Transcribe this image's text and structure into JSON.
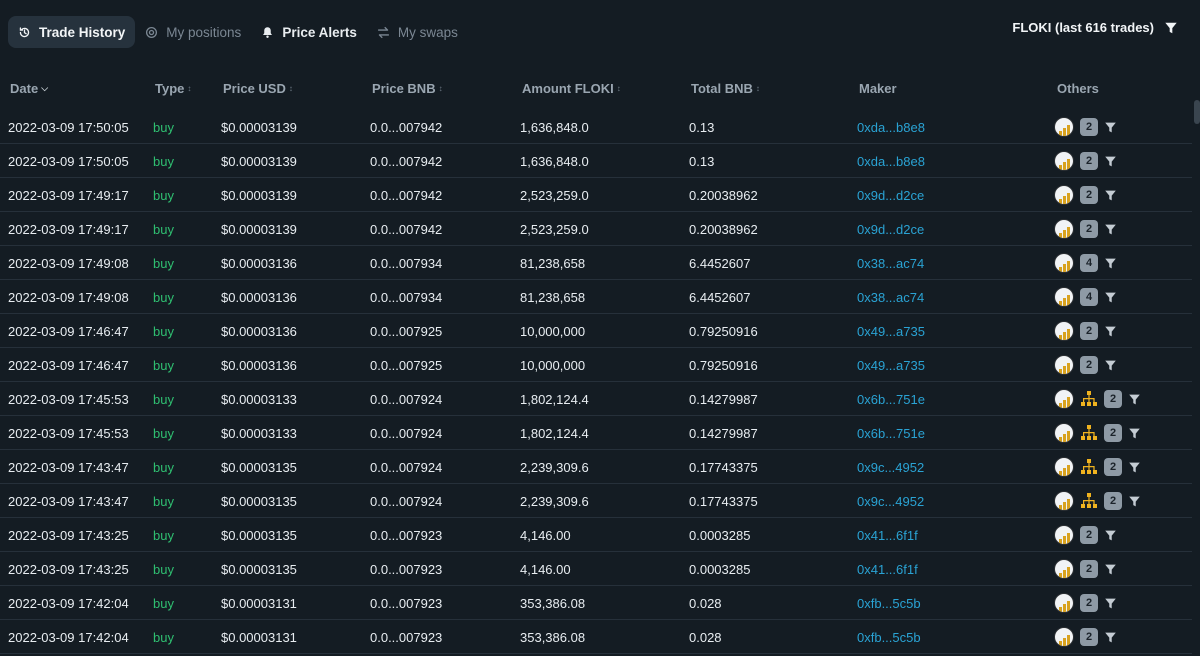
{
  "tabs": [
    {
      "label": "Trade History",
      "icon": "history-icon",
      "active": true
    },
    {
      "label": "My positions",
      "icon": "target-icon",
      "active": false
    },
    {
      "label": "Price Alerts",
      "icon": "bell-icon",
      "active": false
    },
    {
      "label": "My swaps",
      "icon": "swap-icon",
      "active": false
    }
  ],
  "filter_summary": "FLOKI (last 616 trades)",
  "columns": {
    "date": "Date",
    "type": "Type",
    "price_usd": "Price USD",
    "price_bnb": "Price BNB",
    "amount": "Amount FLOKI",
    "total": "Total BNB",
    "maker": "Maker",
    "others": "Others"
  },
  "colors": {
    "buy": "#2fbf71",
    "maker_link": "#2aa3d4",
    "background": "#141c23"
  },
  "trades": [
    {
      "date": "2022-03-09 17:50:05",
      "type": "buy",
      "price_usd": "$0.00003139",
      "price_bnb": "0.0...007942",
      "amount": "1,636,848.0",
      "total": "0.13",
      "maker": "0xda...b8e8",
      "count": "2",
      "org": false
    },
    {
      "date": "2022-03-09 17:50:05",
      "type": "buy",
      "price_usd": "$0.00003139",
      "price_bnb": "0.0...007942",
      "amount": "1,636,848.0",
      "total": "0.13",
      "maker": "0xda...b8e8",
      "count": "2",
      "org": false
    },
    {
      "date": "2022-03-09 17:49:17",
      "type": "buy",
      "price_usd": "$0.00003139",
      "price_bnb": "0.0...007942",
      "amount": "2,523,259.0",
      "total": "0.20038962",
      "maker": "0x9d...d2ce",
      "count": "2",
      "org": false
    },
    {
      "date": "2022-03-09 17:49:17",
      "type": "buy",
      "price_usd": "$0.00003139",
      "price_bnb": "0.0...007942",
      "amount": "2,523,259.0",
      "total": "0.20038962",
      "maker": "0x9d...d2ce",
      "count": "2",
      "org": false
    },
    {
      "date": "2022-03-09 17:49:08",
      "type": "buy",
      "price_usd": "$0.00003136",
      "price_bnb": "0.0...007934",
      "amount": "81,238,658",
      "total": "6.4452607",
      "maker": "0x38...ac74",
      "count": "4",
      "org": false
    },
    {
      "date": "2022-03-09 17:49:08",
      "type": "buy",
      "price_usd": "$0.00003136",
      "price_bnb": "0.0...007934",
      "amount": "81,238,658",
      "total": "6.4452607",
      "maker": "0x38...ac74",
      "count": "4",
      "org": false
    },
    {
      "date": "2022-03-09 17:46:47",
      "type": "buy",
      "price_usd": "$0.00003136",
      "price_bnb": "0.0...007925",
      "amount": "10,000,000",
      "total": "0.79250916",
      "maker": "0x49...a735",
      "count": "2",
      "org": false
    },
    {
      "date": "2022-03-09 17:46:47",
      "type": "buy",
      "price_usd": "$0.00003136",
      "price_bnb": "0.0...007925",
      "amount": "10,000,000",
      "total": "0.79250916",
      "maker": "0x49...a735",
      "count": "2",
      "org": false
    },
    {
      "date": "2022-03-09 17:45:53",
      "type": "buy",
      "price_usd": "$0.00003133",
      "price_bnb": "0.0...007924",
      "amount": "1,802,124.4",
      "total": "0.14279987",
      "maker": "0x6b...751e",
      "count": "2",
      "org": true
    },
    {
      "date": "2022-03-09 17:45:53",
      "type": "buy",
      "price_usd": "$0.00003133",
      "price_bnb": "0.0...007924",
      "amount": "1,802,124.4",
      "total": "0.14279987",
      "maker": "0x6b...751e",
      "count": "2",
      "org": true
    },
    {
      "date": "2022-03-09 17:43:47",
      "type": "buy",
      "price_usd": "$0.00003135",
      "price_bnb": "0.0...007924",
      "amount": "2,239,309.6",
      "total": "0.17743375",
      "maker": "0x9c...4952",
      "count": "2",
      "org": true
    },
    {
      "date": "2022-03-09 17:43:47",
      "type": "buy",
      "price_usd": "$0.00003135",
      "price_bnb": "0.0...007924",
      "amount": "2,239,309.6",
      "total": "0.17743375",
      "maker": "0x9c...4952",
      "count": "2",
      "org": true
    },
    {
      "date": "2022-03-09 17:43:25",
      "type": "buy",
      "price_usd": "$0.00003135",
      "price_bnb": "0.0...007923",
      "amount": "4,146.00",
      "total": "0.0003285",
      "maker": "0x41...6f1f",
      "count": "2",
      "org": false
    },
    {
      "date": "2022-03-09 17:43:25",
      "type": "buy",
      "price_usd": "$0.00003135",
      "price_bnb": "0.0...007923",
      "amount": "4,146.00",
      "total": "0.0003285",
      "maker": "0x41...6f1f",
      "count": "2",
      "org": false
    },
    {
      "date": "2022-03-09 17:42:04",
      "type": "buy",
      "price_usd": "$0.00003131",
      "price_bnb": "0.0...007923",
      "amount": "353,386.08",
      "total": "0.028",
      "maker": "0xfb...5c5b",
      "count": "2",
      "org": false
    },
    {
      "date": "2022-03-09 17:42:04",
      "type": "buy",
      "price_usd": "$0.00003131",
      "price_bnb": "0.0...007923",
      "amount": "353,386.08",
      "total": "0.028",
      "maker": "0xfb...5c5b",
      "count": "2",
      "org": false
    }
  ]
}
